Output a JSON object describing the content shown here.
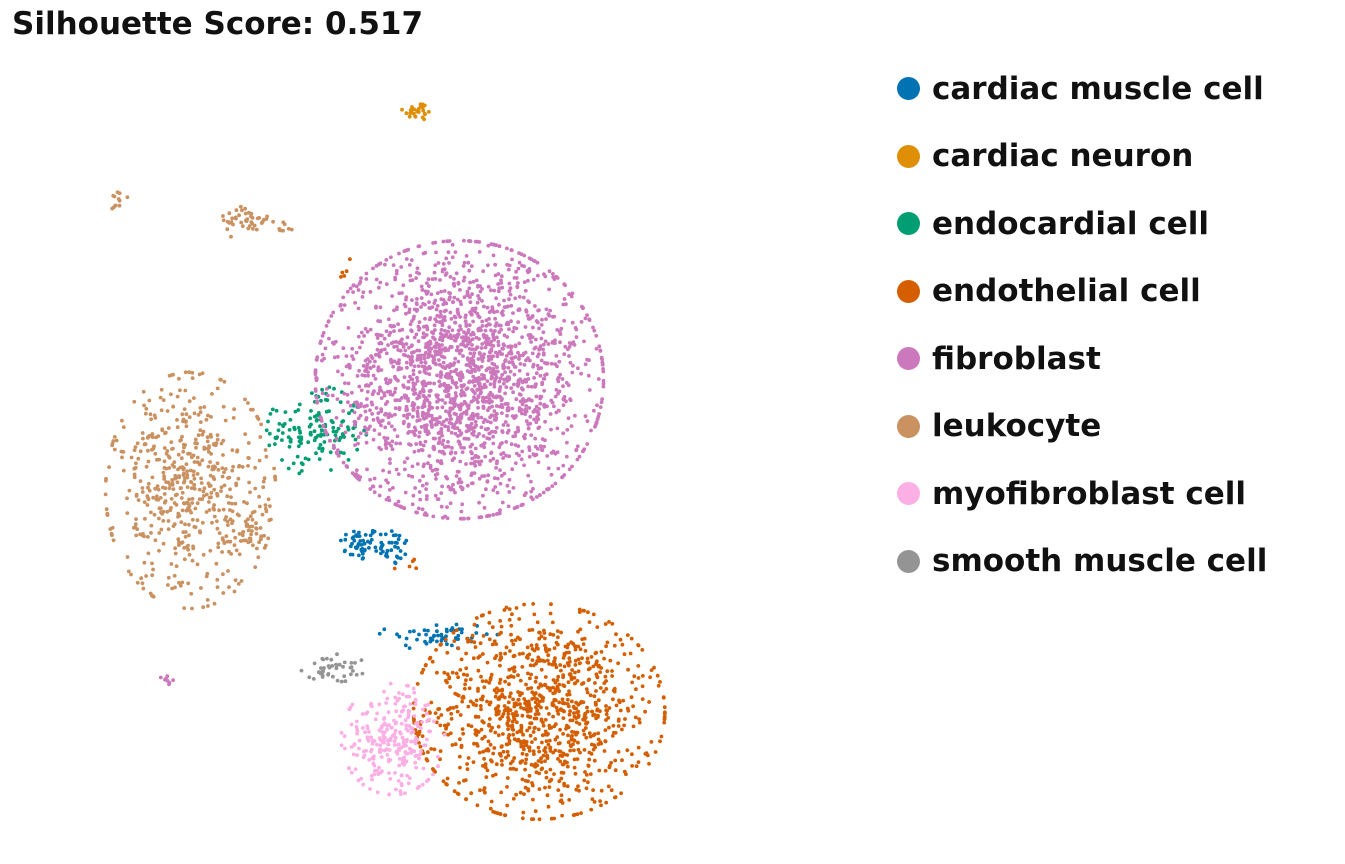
{
  "header": {
    "title": "Silhouette Score: 0.517"
  },
  "chart_data": {
    "type": "scatter",
    "title": "Silhouette Score: 0.517",
    "xlabel": "",
    "ylabel": "",
    "x_range": [
      0,
      100
    ],
    "y_range": [
      0,
      100
    ],
    "grid": false,
    "axes_visible": false,
    "legend_position": "right",
    "point_radius": 1.9,
    "series": [
      {
        "name": "cardiac muscle cell",
        "color": "#0173B2",
        "clusters": [
          {
            "cx": 41.6,
            "cy": 36.2,
            "sx": 1.2,
            "sy": 1.1,
            "n": 45
          },
          {
            "cx": 45.6,
            "cy": 35.8,
            "sx": 1.1,
            "sy": 1.2,
            "n": 35
          },
          {
            "cx": 51.0,
            "cy": 24.6,
            "sx": 3.2,
            "sy": 0.9,
            "n": 55
          }
        ]
      },
      {
        "name": "cardiac neuron",
        "color": "#DE8F05",
        "clusters": [
          {
            "cx": 48.6,
            "cy": 91.0,
            "sx": 0.9,
            "sy": 0.6,
            "n": 28
          }
        ]
      },
      {
        "name": "endocardial cell",
        "color": "#029E73",
        "clusters": [
          {
            "cx": 36.5,
            "cy": 50.5,
            "sx": 2.7,
            "sy": 2.6,
            "n": 140
          }
        ]
      },
      {
        "name": "endothelial cell",
        "color": "#D55E00",
        "clusters": [
          {
            "cx": 63.0,
            "cy": 15.0,
            "sx": 6.8,
            "sy": 6.2,
            "n": 1050
          },
          {
            "cx": 47.5,
            "cy": 34.0,
            "sx": 0.9,
            "sy": 0.8,
            "n": 5
          },
          {
            "cx": 39.8,
            "cy": 71.0,
            "sx": 0.4,
            "sy": 0.9,
            "n": 5
          }
        ]
      },
      {
        "name": "fibroblast",
        "color": "#CC78BC",
        "clusters": [
          {
            "cx": 53.5,
            "cy": 57.0,
            "sx": 7.8,
            "sy": 8.0,
            "n": 2100
          },
          {
            "cx": 18.7,
            "cy": 19.3,
            "sx": 0.5,
            "sy": 0.4,
            "n": 8
          }
        ]
      },
      {
        "name": "leukocyte",
        "color": "#CA9161",
        "clusters": [
          {
            "cx": 21.5,
            "cy": 43.0,
            "sx": 4.6,
            "sy": 6.8,
            "n": 560
          },
          {
            "cx": 28.3,
            "cy": 37.8,
            "sx": 1.2,
            "sy": 1.1,
            "n": 30
          },
          {
            "cx": 28.1,
            "cy": 77.0,
            "sx": 1.6,
            "sy": 1.0,
            "n": 42
          },
          {
            "cx": 12.9,
            "cy": 79.8,
            "sx": 0.5,
            "sy": 0.7,
            "n": 12
          },
          {
            "cx": 32.7,
            "cy": 76.0,
            "sx": 0.5,
            "sy": 0.5,
            "n": 8
          }
        ]
      },
      {
        "name": "myofibroblast cell",
        "color": "#FBAFE4",
        "clusters": [
          {
            "cx": 45.6,
            "cy": 11.5,
            "sx": 2.8,
            "sy": 3.2,
            "n": 260
          }
        ]
      },
      {
        "name": "smooth muscle cell",
        "color": "#949494",
        "clusters": [
          {
            "cx": 38.6,
            "cy": 20.5,
            "sx": 1.8,
            "sy": 0.8,
            "n": 42
          }
        ]
      }
    ]
  }
}
